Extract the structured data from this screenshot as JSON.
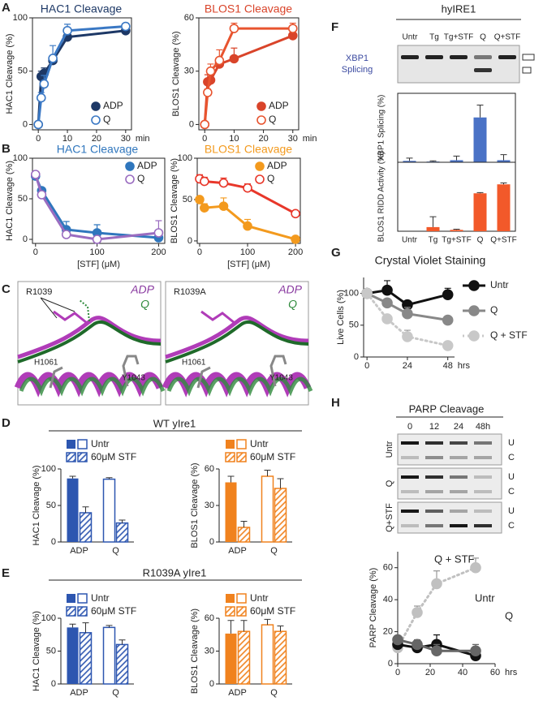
{
  "figure": {
    "panel_labels": [
      "A",
      "B",
      "C",
      "D",
      "E",
      "F",
      "G",
      "H"
    ],
    "structures": [
      {
        "residue": "R1039",
        "ligands": [
          "ADP",
          "Q"
        ],
        "residues": [
          "H1061",
          "Y1043"
        ]
      },
      {
        "residue": "R1039A",
        "ligands": [
          "ADP",
          "Q"
        ],
        "residues": [
          "H1061",
          "Y1043"
        ]
      }
    ],
    "bar_headers": [
      "WT yIre1",
      "R1039A yIre1"
    ],
    "gel": {
      "title": "hyIRE1",
      "lanes": [
        "Untr",
        "Tg",
        "Tg+STF",
        "Q",
        "Q+STF"
      ],
      "label": [
        "XBP1",
        "Splicing"
      ]
    },
    "blot": {
      "title": "PARP Cleavage",
      "lanes": [
        "0",
        "12",
        "24",
        "48h"
      ],
      "rows": [
        "Untr",
        "Q",
        "Q+STF"
      ],
      "bands": [
        "U",
        "C"
      ]
    }
  },
  "chart_data": [
    {
      "type": "line",
      "title": "HAC1 Cleavage",
      "ylabel": "HAC1 Cleavage (%)",
      "xunit": "min",
      "x": [
        0,
        1,
        2,
        5,
        10,
        30
      ],
      "xlim": [
        -2,
        32
      ],
      "xticks": [
        0,
        10,
        20,
        30
      ],
      "ylim": [
        -5,
        100
      ],
      "yticks": [
        0,
        50,
        100
      ],
      "series": [
        {
          "name": "ADP",
          "color": "#1d3866",
          "marker": "filled",
          "values": [
            0,
            45,
            48,
            60,
            82,
            88
          ],
          "errors": [
            0,
            5,
            5,
            4,
            5,
            4
          ]
        },
        {
          "name": "Q",
          "color": "#3a78c4",
          "marker": "open",
          "values": [
            0,
            25,
            38,
            62,
            88,
            92
          ],
          "errors": [
            0,
            5,
            8,
            12,
            6,
            3
          ]
        }
      ]
    },
    {
      "type": "line",
      "title": "BLOS1 Cleavage",
      "ylabel": "BLOS1 Cleavage (%)",
      "xunit": "min",
      "x": [
        0,
        1,
        2,
        5,
        10,
        30
      ],
      "xlim": [
        -2,
        32
      ],
      "xticks": [
        0,
        10,
        20,
        30
      ],
      "ylim": [
        -3,
        60
      ],
      "yticks": [
        0,
        30,
        60
      ],
      "series": [
        {
          "name": "ADP",
          "color": "#d9442a",
          "marker": "filled",
          "values": [
            0,
            24,
            25,
            34,
            37,
            50
          ],
          "errors": [
            0,
            4,
            3,
            3,
            6,
            4
          ]
        },
        {
          "name": "Q",
          "color": "#e8542f",
          "marker": "open",
          "values": [
            0,
            18,
            30,
            36,
            54,
            54
          ],
          "errors": [
            0,
            2,
            4,
            6,
            3,
            3
          ]
        }
      ]
    },
    {
      "type": "line",
      "title": "HAC1 Cleavage",
      "ylabel": "HAC1 Cleavage (%)",
      "xlabel": "[STF] (μM)",
      "x": [
        0,
        10,
        50,
        100,
        200
      ],
      "xlim": [
        -5,
        210
      ],
      "xticks": [
        0,
        100,
        200
      ],
      "ylim": [
        -5,
        100
      ],
      "yticks": [
        0,
        50,
        100
      ],
      "series": [
        {
          "name": "ADP",
          "color": "#2f76bd",
          "marker": "filled",
          "values": [
            78,
            60,
            12,
            8,
            2
          ],
          "errors": [
            0,
            0,
            10,
            10,
            0
          ]
        },
        {
          "name": "Q",
          "color": "#9a6cc0",
          "marker": "open",
          "values": [
            80,
            55,
            6,
            0,
            8
          ],
          "errors": [
            0,
            0,
            0,
            0,
            15
          ]
        }
      ]
    },
    {
      "type": "line",
      "title": "BLOS1 Cleavage",
      "ylabel": "BLOS1 Cleavage (%)",
      "xlabel": "[STF] (μM)",
      "x": [
        0,
        10,
        50,
        100,
        200
      ],
      "xlim": [
        -5,
        210
      ],
      "xticks": [
        0,
        100,
        200
      ],
      "ylim": [
        -3,
        100
      ],
      "yticks": [
        0,
        50,
        100
      ],
      "series": [
        {
          "name": "ADP",
          "color": "#f39a1e",
          "marker": "filled",
          "values": [
            50,
            40,
            42,
            18,
            2
          ],
          "errors": [
            0,
            5,
            10,
            8,
            0
          ]
        },
        {
          "name": "Q",
          "color": "#e8372a",
          "marker": "open",
          "values": [
            75,
            72,
            70,
            64,
            33
          ],
          "errors": [
            5,
            5,
            6,
            5,
            0
          ]
        }
      ]
    },
    {
      "type": "bar",
      "ylabel": "XBP1 Splicing (%)",
      "categories": [
        null,
        null,
        null,
        null,
        null
      ],
      "values": [
        2,
        1,
        3,
        65,
        3
      ],
      "errors": [
        4,
        1,
        6,
        18,
        8
      ],
      "color": "#4a72c6",
      "ylim": [
        0,
        100
      ]
    },
    {
      "type": "bar",
      "ylabel": "BLOS1 RIDD Activity (%)",
      "categories": [
        "Untr",
        "Tg",
        "Tg+STF",
        "Q",
        "Q+STF"
      ],
      "values": [
        0,
        6,
        2,
        55,
        68
      ],
      "errors": [
        0,
        15,
        1,
        1,
        2
      ],
      "color": "#f2592a",
      "ylim": [
        0,
        100
      ]
    },
    {
      "type": "line",
      "title": "Crystal Violet Staining",
      "ylabel": "Live Cells (%)",
      "xunit": "hrs",
      "x": [
        0,
        12,
        24,
        48
      ],
      "xlim": [
        -2,
        52
      ],
      "xticks": [
        0,
        24,
        48
      ],
      "ylim": [
        0,
        125
      ],
      "yticks": [
        0,
        50,
        100
      ],
      "series": [
        {
          "name": "Untr",
          "color": "#111111",
          "marker": "filled",
          "values": [
            100,
            105,
            82,
            98
          ],
          "errors": [
            0,
            15,
            6,
            10
          ]
        },
        {
          "name": "Q",
          "color": "#888888",
          "marker": "filled",
          "values": [
            100,
            85,
            68,
            58
          ],
          "errors": [
            0,
            6,
            10,
            5
          ]
        },
        {
          "name": "Q + STF",
          "color": "#c8c8c8",
          "marker": "filled",
          "dash": true,
          "values": [
            100,
            60,
            32,
            18
          ],
          "errors": [
            0,
            6,
            10,
            5
          ]
        }
      ]
    },
    {
      "type": "line",
      "ylabel": "PARP Cleavage (%)",
      "xunit": "hrs",
      "x": [
        0,
        12,
        24,
        48
      ],
      "xlim": [
        0,
        60
      ],
      "xticks": [
        0,
        20,
        40,
        60
      ],
      "ylim": [
        0,
        70
      ],
      "yticks": [
        0,
        20,
        40,
        60
      ],
      "series": [
        {
          "name": "Q + STF",
          "color": "#c0c0c0",
          "marker": "filled",
          "dash": true,
          "values": [
            10,
            32,
            50,
            60
          ],
          "errors": [
            0,
            4,
            8,
            6
          ]
        },
        {
          "name": "Untr",
          "color": "#111111",
          "marker": "filled",
          "values": [
            12,
            10,
            12,
            5
          ],
          "errors": [
            0,
            4,
            6,
            4
          ]
        },
        {
          "name": "Q",
          "color": "#666666",
          "marker": "filled",
          "values": [
            15,
            12,
            8,
            8
          ],
          "errors": [
            0,
            3,
            4,
            4
          ]
        }
      ]
    },
    {
      "type": "bar",
      "ylabel": "HAC1 Cleavage (%)",
      "categories": [
        "ADP",
        "Q"
      ],
      "fill_style": [
        "solid",
        "open"
      ],
      "color": "#2d56b0",
      "ylim": [
        0,
        100
      ],
      "yticks": [
        0,
        50,
        100
      ],
      "series": [
        {
          "name": "Untr",
          "values": [
            87,
            86
          ],
          "errors": [
            3,
            2
          ]
        },
        {
          "name": "60μM STF",
          "hatch": true,
          "values": [
            40,
            26
          ],
          "errors": [
            8,
            4
          ]
        }
      ]
    },
    {
      "type": "bar",
      "ylabel": "BLOS1 Cleavage (%)",
      "categories": [
        "ADP",
        "Q"
      ],
      "fill_style": [
        "solid",
        "open"
      ],
      "color": "#f0821e",
      "ylim": [
        0,
        60
      ],
      "yticks": [
        0,
        30,
        60
      ],
      "series": [
        {
          "name": "Untr",
          "values": [
            49,
            54
          ],
          "errors": [
            5,
            5
          ]
        },
        {
          "name": "60μM STF",
          "hatch": true,
          "values": [
            12,
            44
          ],
          "errors": [
            5,
            8
          ]
        }
      ]
    },
    {
      "type": "bar",
      "ylabel": "HAC1 Cleavage (%)",
      "categories": [
        "ADP",
        "Q"
      ],
      "fill_style": [
        "solid",
        "open"
      ],
      "color": "#2d56b0",
      "ylim": [
        0,
        100
      ],
      "yticks": [
        0,
        50,
        100
      ],
      "series": [
        {
          "name": "Untr",
          "values": [
            86,
            86
          ],
          "errors": [
            5,
            3
          ]
        },
        {
          "name": "60μM STF",
          "hatch": true,
          "values": [
            78,
            60
          ],
          "errors": [
            15,
            7
          ]
        }
      ]
    },
    {
      "type": "bar",
      "ylabel": "BLOS1 Cleavage (%)",
      "categories": [
        "ADP",
        "Q"
      ],
      "fill_style": [
        "solid",
        "open"
      ],
      "color": "#f0821e",
      "ylim": [
        0,
        60
      ],
      "yticks": [
        0,
        30,
        60
      ],
      "series": [
        {
          "name": "Untr",
          "values": [
            46,
            54
          ],
          "errors": [
            12,
            5
          ]
        },
        {
          "name": "60μM STF",
          "hatch": true,
          "values": [
            48,
            48
          ],
          "errors": [
            10,
            5
          ]
        }
      ]
    }
  ]
}
